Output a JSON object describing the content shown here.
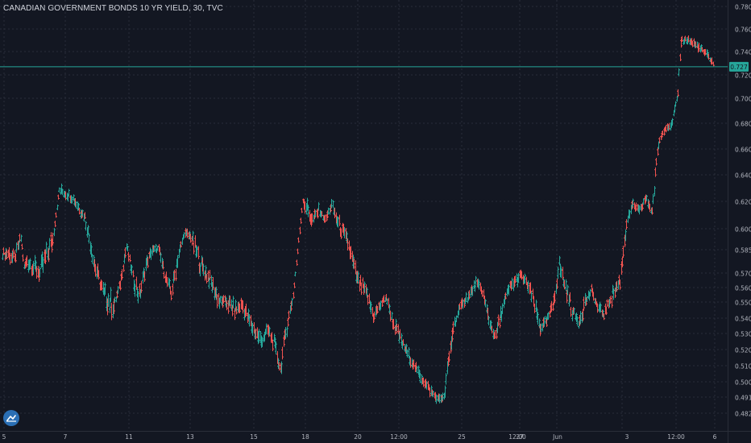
{
  "chart_data": {
    "type": "ohlc",
    "title": "CANADIAN GOVERNMENT BONDS 10 YR YIELD, 30, TVC",
    "last_price": "0.727",
    "colors": {
      "background": "#131722",
      "up": "#26a69a",
      "down": "#ef5350",
      "grid": "#2a2e39",
      "text": "#b2b5be",
      "price_line": "#26a69a"
    },
    "y_ticks": [
      "0.780",
      "0.760",
      "0.740",
      "0.720",
      "0.700",
      "0.680",
      "0.660",
      "0.640",
      "0.620",
      "0.600",
      "0.585",
      "0.570",
      "0.560",
      "0.550",
      "0.540",
      "0.530",
      "0.520",
      "0.510",
      "0.500",
      "0.491",
      "0.482"
    ],
    "x_ticks": [
      "5",
      "7",
      "11",
      "13",
      "15",
      "18",
      "20",
      "12:00",
      "25",
      "27",
      "12:00",
      "Jun",
      "3",
      "12:00",
      "6"
    ],
    "series_path": [
      [
        0.58,
        0.585,
        1,
        1,
        2
      ],
      [
        0.575,
        0.583,
        -1,
        -1,
        2
      ],
      [
        0.59,
        0.597,
        1,
        1,
        2
      ],
      [
        0.572,
        0.575,
        -1,
        -1,
        1
      ],
      [
        0.575,
        0.581,
        1,
        1,
        1
      ],
      [
        0.565,
        0.575,
        -1,
        -1,
        4
      ],
      [
        0.585,
        0.6,
        1,
        2,
        4
      ],
      [
        0.627,
        0.63,
        -1,
        1,
        2
      ],
      [
        0.62,
        0.627,
        -1,
        -1,
        4
      ],
      [
        0.605,
        0.612,
        -1,
        -1,
        4
      ],
      [
        0.57,
        0.58,
        -1,
        -1,
        3
      ],
      [
        0.55,
        0.56,
        -1,
        -1,
        3
      ],
      [
        0.54,
        0.555,
        -1,
        -1,
        3
      ],
      [
        0.56,
        0.565,
        1,
        1,
        2
      ],
      [
        0.585,
        0.59,
        1,
        1,
        2
      ],
      [
        0.565,
        0.57,
        -1,
        -1,
        2
      ],
      [
        0.548,
        0.56,
        -1,
        -1,
        2
      ],
      [
        0.57,
        0.58,
        1,
        1,
        2
      ],
      [
        0.582,
        0.588,
        1,
        1,
        2
      ],
      [
        0.584,
        0.587,
        1,
        -1,
        2
      ],
      [
        0.565,
        0.57,
        -1,
        -1,
        2
      ],
      [
        0.552,
        0.56,
        -1,
        -1,
        2
      ],
      [
        0.575,
        0.585,
        1,
        1,
        2
      ],
      [
        0.595,
        0.598,
        1,
        1,
        2
      ],
      [
        0.592,
        0.597,
        1,
        -1,
        2
      ],
      [
        0.57,
        0.582,
        -1,
        -1,
        3
      ],
      [
        0.56,
        0.57,
        -1,
        -1,
        3
      ],
      [
        0.545,
        0.556,
        -1,
        -1,
        3
      ],
      [
        0.548,
        0.553,
        1,
        1,
        2
      ],
      [
        0.54,
        0.55,
        -1,
        -1,
        3
      ],
      [
        0.545,
        0.552,
        1,
        1,
        2
      ],
      [
        0.53,
        0.54,
        -1,
        -1,
        3
      ],
      [
        0.52,
        0.53,
        -1,
        -1,
        3
      ],
      [
        0.53,
        0.535,
        1,
        1,
        2
      ],
      [
        0.52,
        0.528,
        -1,
        -1,
        2
      ],
      [
        0.504,
        0.512,
        -1,
        -1,
        2
      ],
      [
        0.53,
        0.54,
        1,
        1,
        2
      ],
      [
        0.552,
        0.557,
        1,
        1,
        2
      ],
      [
        0.62,
        0.622,
        1,
        2,
        3
      ],
      [
        0.6,
        0.612,
        -1,
        -1,
        3
      ],
      [
        0.61,
        0.617,
        1,
        1,
        2
      ],
      [
        0.605,
        0.608,
        -1,
        -1,
        2
      ],
      [
        0.615,
        0.62,
        1,
        1,
        2
      ],
      [
        0.6,
        0.608,
        -1,
        -1,
        2
      ],
      [
        0.585,
        0.595,
        -1,
        -1,
        3
      ],
      [
        0.56,
        0.57,
        -1,
        -1,
        3
      ],
      [
        0.55,
        0.56,
        -1,
        -1,
        3
      ],
      [
        0.538,
        0.545,
        -1,
        -1,
        2
      ],
      [
        0.545,
        0.55,
        1,
        1,
        2
      ],
      [
        0.552,
        0.555,
        1,
        1,
        2
      ],
      [
        0.535,
        0.54,
        -1,
        2,
        2
      ],
      [
        0.52,
        0.528,
        -1,
        -1,
        3
      ],
      [
        0.51,
        0.515,
        -1,
        -1,
        3
      ],
      [
        0.5,
        0.505,
        -1,
        -1,
        3
      ],
      [
        0.492,
        0.496,
        -1,
        -1,
        3
      ],
      [
        0.489,
        0.491,
        -1,
        -1,
        2
      ],
      [
        0.49,
        0.492,
        1,
        1,
        2
      ],
      [
        0.53,
        0.54,
        1,
        2,
        3
      ],
      [
        0.548,
        0.553,
        1,
        1,
        3
      ],
      [
        0.552,
        0.557,
        1,
        1,
        2
      ],
      [
        0.56,
        0.566,
        1,
        1,
        2
      ],
      [
        0.555,
        0.56,
        -1,
        -1,
        2
      ],
      [
        0.535,
        0.542,
        -1,
        -1,
        2
      ],
      [
        0.525,
        0.53,
        -1,
        -1,
        2
      ],
      [
        0.54,
        0.548,
        1,
        1,
        2
      ],
      [
        0.555,
        0.56,
        1,
        1,
        2
      ],
      [
        0.56,
        0.568,
        1,
        1,
        2
      ],
      [
        0.565,
        0.571,
        1,
        1,
        2
      ],
      [
        0.56,
        0.565,
        -1,
        2,
        2
      ],
      [
        0.545,
        0.555,
        -1,
        -1,
        2
      ],
      [
        0.53,
        0.538,
        -1,
        -1,
        2
      ],
      [
        0.535,
        0.54,
        1,
        1,
        2
      ],
      [
        0.545,
        0.55,
        1,
        1,
        2
      ],
      [
        0.57,
        0.58,
        1,
        1,
        2
      ],
      [
        0.555,
        0.565,
        -1,
        -1,
        2
      ],
      [
        0.54,
        0.55,
        -1,
        -1,
        2
      ],
      [
        0.535,
        0.54,
        -1,
        -1,
        2
      ],
      [
        0.545,
        0.555,
        1,
        1,
        2
      ],
      [
        0.555,
        0.56,
        1,
        1,
        2
      ],
      [
        0.545,
        0.548,
        -1,
        -1,
        2
      ],
      [
        0.54,
        0.545,
        -1,
        -1,
        2
      ],
      [
        0.55,
        0.555,
        1,
        1,
        2
      ],
      [
        0.56,
        0.57,
        1,
        1,
        3
      ],
      [
        0.6,
        0.61,
        1,
        1,
        2
      ],
      [
        0.615,
        0.62,
        1,
        1,
        2
      ],
      [
        0.61,
        0.615,
        -1,
        -1,
        2
      ],
      [
        0.62,
        0.625,
        1,
        1,
        2
      ],
      [
        0.61,
        0.615,
        -1,
        -1,
        2
      ],
      [
        0.66,
        0.67,
        1,
        1,
        2
      ],
      [
        0.675,
        0.678,
        1,
        1,
        2
      ],
      [
        0.677,
        0.68,
        1,
        1,
        2
      ],
      [
        0.7,
        0.705,
        1,
        2,
        2
      ],
      [
        0.745,
        0.755,
        1,
        1,
        1
      ],
      [
        0.748,
        0.753,
        -1,
        -1,
        2
      ],
      [
        0.742,
        0.748,
        -1,
        -1,
        3
      ],
      [
        0.735,
        0.74,
        -1,
        -1,
        3
      ],
      [
        0.728,
        0.732,
        -1,
        -1,
        2
      ]
    ]
  }
}
